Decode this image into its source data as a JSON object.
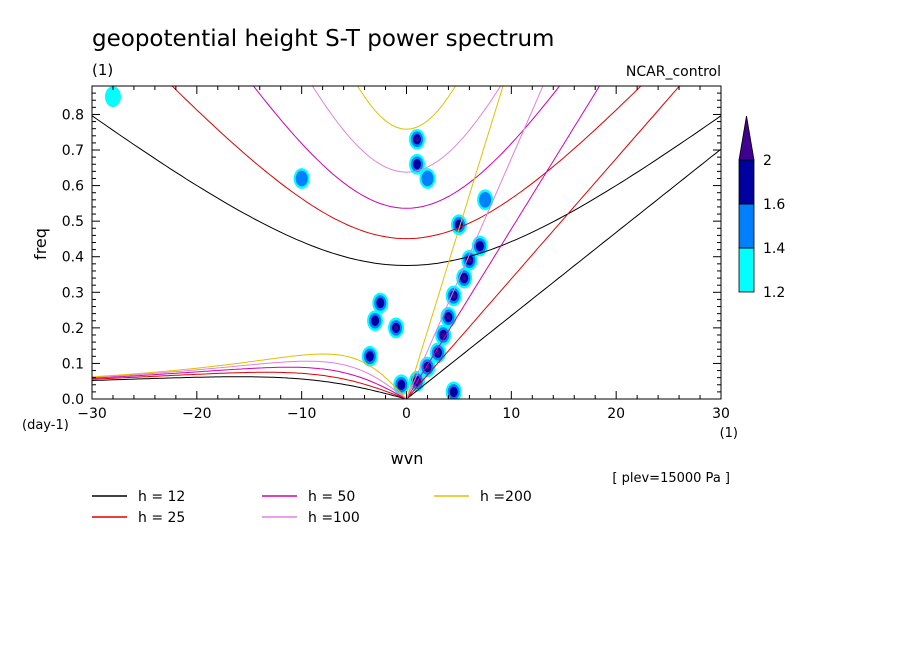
{
  "chart_data": {
    "type": "heatmap",
    "title": "geopotential height S-T power spectrum",
    "subtitle_left": "(1)",
    "subtitle_right": "NCAR_control",
    "xlabel": "wvn",
    "ylabel": "freq",
    "x_unit": "(1)",
    "y_unit": "(day-1)",
    "xlim": [
      -30,
      30
    ],
    "ylim": [
      0,
      0.88
    ],
    "x_ticks": [
      -30,
      -20,
      -10,
      0,
      10,
      20,
      30
    ],
    "x_tick_labels": [
      "-30",
      "-20",
      "-10",
      "0",
      "10",
      "20",
      "30"
    ],
    "y_ticks": [
      0.0,
      0.1,
      0.2,
      0.3,
      0.4,
      0.5,
      0.6,
      0.7,
      0.8
    ],
    "y_tick_labels": [
      "0.0",
      "0.1",
      "0.2",
      "0.3",
      "0.4",
      "0.5",
      "0.6",
      "0.7",
      "0.8"
    ],
    "annotation": "[ plev=15000 Pa ]",
    "colorbar": {
      "levels": [
        1.2,
        1.4,
        1.6,
        2
      ],
      "level_labels": [
        "1.2",
        "1.4",
        "1.6",
        "2"
      ],
      "colors": [
        "#00ffff",
        "#0080ff",
        "#0000a0",
        "#400090"
      ]
    },
    "dispersion_curves": [
      {
        "name": "h = 12",
        "h": 12,
        "color": "#000000"
      },
      {
        "name": "h = 25",
        "h": 25,
        "color": "#e00000"
      },
      {
        "name": "h = 50",
        "h": 50,
        "color": "#d000b0"
      },
      {
        "name": "h =100",
        "h": 100,
        "color": "#e080e0"
      },
      {
        "name": "h =200",
        "h": 200,
        "color": "#e0c000"
      }
    ],
    "spectral_peaks": [
      {
        "wvn": 1.0,
        "freq": 0.73,
        "level": 2
      },
      {
        "wvn": 1.0,
        "freq": 0.66,
        "level": 1.6
      },
      {
        "wvn": -1.0,
        "freq": 0.2,
        "level": 2
      },
      {
        "wvn": -2.5,
        "freq": 0.27,
        "level": 1.6
      },
      {
        "wvn": -3.0,
        "freq": 0.22,
        "level": 1.6
      },
      {
        "wvn": -3.5,
        "freq": 0.12,
        "level": 1.6
      },
      {
        "wvn": -0.5,
        "freq": 0.04,
        "level": 1.6
      },
      {
        "wvn": 1.0,
        "freq": 0.05,
        "level": 2
      },
      {
        "wvn": 2.0,
        "freq": 0.09,
        "level": 2
      },
      {
        "wvn": 3.0,
        "freq": 0.13,
        "level": 2
      },
      {
        "wvn": 3.5,
        "freq": 0.18,
        "level": 2
      },
      {
        "wvn": 4.0,
        "freq": 0.23,
        "level": 2
      },
      {
        "wvn": 4.5,
        "freq": 0.29,
        "level": 2
      },
      {
        "wvn": 5.5,
        "freq": 0.34,
        "level": 2
      },
      {
        "wvn": 6.0,
        "freq": 0.39,
        "level": 2
      },
      {
        "wvn": 7.0,
        "freq": 0.43,
        "level": 1.6
      },
      {
        "wvn": 5.0,
        "freq": 0.49,
        "level": 1.6
      },
      {
        "wvn": 7.5,
        "freq": 0.56,
        "level": 1.4
      },
      {
        "wvn": 2.0,
        "freq": 0.62,
        "level": 1.4
      },
      {
        "wvn": 4.5,
        "freq": 0.02,
        "level": 1.6
      },
      {
        "wvn": -10.0,
        "freq": 0.62,
        "level": 1.4
      },
      {
        "wvn": -28.0,
        "freq": 0.85,
        "level": 1.2
      }
    ]
  },
  "legend": {
    "items": [
      "h = 12",
      "h = 25",
      "h = 50",
      "h =100",
      "h =200"
    ]
  }
}
